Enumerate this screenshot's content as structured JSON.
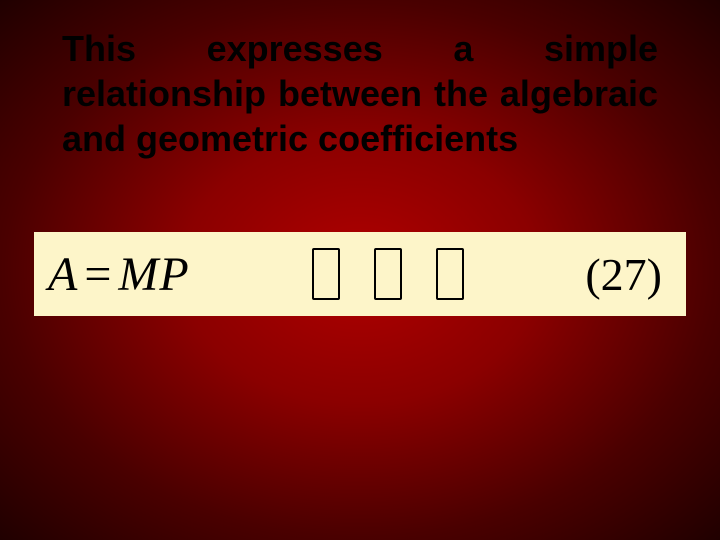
{
  "slide": {
    "background_gradient": {
      "center": "#b00000",
      "mid": "#8b0000",
      "outer": "#4a0000",
      "edge": "#200000"
    },
    "main_text": "This expresses a simple relationship between the algebraic and geometric coefficients",
    "text_color": "#000000",
    "text_fontsize": 36,
    "text_weight": "bold"
  },
  "equation": {
    "lhs": "A",
    "eq": "=",
    "rhs": "MP",
    "glyph_count": 3,
    "number": "(27)",
    "box_background": "#fdf5c9",
    "font_family": "Times New Roman",
    "fontsize": 48,
    "font_style": "italic"
  }
}
